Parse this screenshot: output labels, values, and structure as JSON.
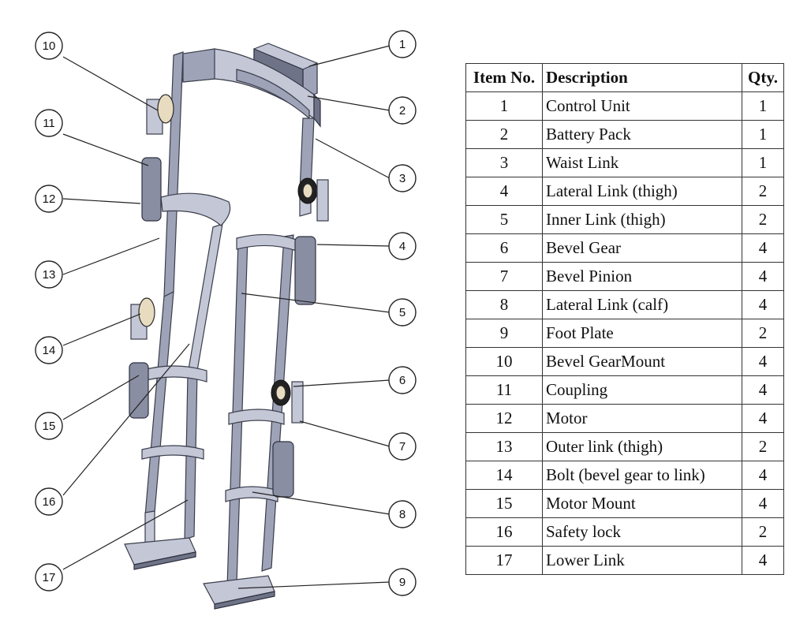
{
  "bom": {
    "headers": {
      "item": "Item No.",
      "description": "Description",
      "qty": "Qty."
    },
    "rows": [
      {
        "item": "1",
        "description": "Control Unit",
        "qty": "1"
      },
      {
        "item": "2",
        "description": "Battery Pack",
        "qty": "1"
      },
      {
        "item": "3",
        "description": "Waist Link",
        "qty": "1"
      },
      {
        "item": "4",
        "description": "Lateral Link (thigh)",
        "qty": "2"
      },
      {
        "item": "5",
        "description": "Inner Link (thigh)",
        "qty": "2"
      },
      {
        "item": "6",
        "description": "Bevel Gear",
        "qty": "4"
      },
      {
        "item": "7",
        "description": "Bevel Pinion",
        "qty": "4"
      },
      {
        "item": "8",
        "description": "Lateral Link (calf)",
        "qty": "4"
      },
      {
        "item": "9",
        "description": "Foot Plate",
        "qty": "2"
      },
      {
        "item": "10",
        "description": "Bevel GearMount",
        "qty": "4"
      },
      {
        "item": "11",
        "description": "Coupling",
        "qty": "4"
      },
      {
        "item": "12",
        "description": "Motor",
        "qty": "4"
      },
      {
        "item": "13",
        "description": "Outer link (thigh)",
        "qty": "2"
      },
      {
        "item": "14",
        "description": "Bolt (bevel gear to link)",
        "qty": "4"
      },
      {
        "item": "15",
        "description": "Motor Mount",
        "qty": "4"
      },
      {
        "item": "16",
        "description": "Safety lock",
        "qty": "2"
      },
      {
        "item": "17",
        "description": "Lower Link",
        "qty": "4"
      }
    ]
  },
  "callouts": [
    "1",
    "2",
    "3",
    "4",
    "5",
    "6",
    "7",
    "8",
    "9",
    "10",
    "11",
    "12",
    "13",
    "14",
    "15",
    "16",
    "17"
  ]
}
